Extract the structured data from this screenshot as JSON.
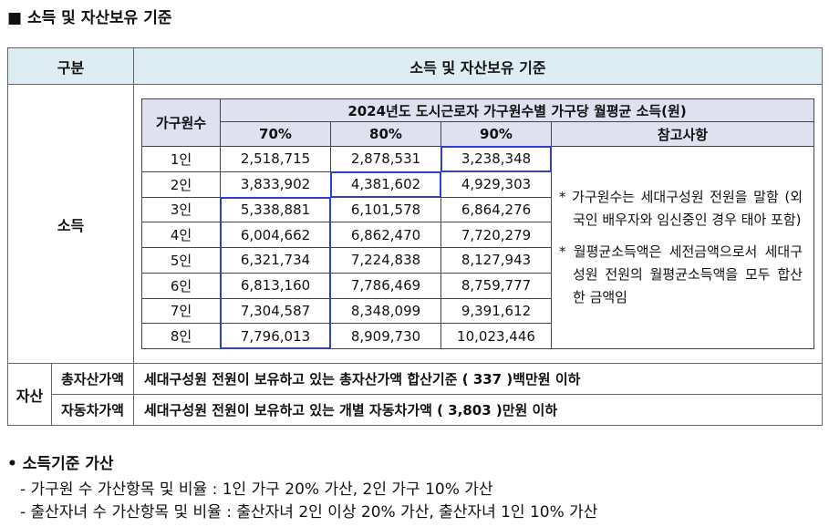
{
  "title": "■ 소득 및 자산보유 기준",
  "table": {
    "header": [
      "구분",
      "소득 및 자산보유 기준"
    ],
    "income": {
      "label": "소득",
      "inner": {
        "row_header": "가구원수",
        "caption": "2024년도 도시근로자 가구원수별 가구당 월평균 소득(원)",
        "columns": [
          "70%",
          "80%",
          "90%"
        ],
        "notes_header": "참고사항",
        "rows": [
          [
            "1인",
            "2,518,715",
            "2,878,531",
            "3,238,348"
          ],
          [
            "2인",
            "3,833,902",
            "4,381,602",
            "4,929,303"
          ],
          [
            "3인",
            "5,338,881",
            "6,101,578",
            "6,864,276"
          ],
          [
            "4인",
            "6,004,662",
            "6,862,470",
            "7,720,279"
          ],
          [
            "5인",
            "6,321,734",
            "7,224,838",
            "8,127,943"
          ],
          [
            "6인",
            "6,813,160",
            "7,786,469",
            "8,759,777"
          ],
          [
            "7인",
            "7,304,587",
            "8,348,099",
            "9,391,612"
          ],
          [
            "8인",
            "7,796,013",
            "8,909,730",
            "10,023,446"
          ]
        ],
        "notes": [
          "* 가구원수는 세대구성원 전원을 말함 (외국인 배우자와 임신중인 경우 태아 포함)",
          "* 월평균소득액은 세전금액으로서 세대구성원 전원의 월평균소득액을 모두 합산한 금액임"
        ]
      }
    },
    "assets": {
      "label": "자산",
      "rows": [
        [
          "총자산가액",
          "세대구성원 전원이 보유하고 있는 총자산가액 합산기준 ( 337 )백만원 이하"
        ],
        [
          "자동차가액",
          "세대구성원 전원이 보유하고 있는 개별 자동차가액 ( 3,803 )만원 이하"
        ]
      ]
    }
  },
  "addition": {
    "title": "• 소득기준 가산",
    "items": [
      "- 가구원 수 가산항목 및 비율 : 1인 가구 20% 가산, 2인 가구 10% 가산",
      "- 출산자녀 수 가산항목 및 비율 : 출산자녀 2인 이상 20% 가산, 출산자녀 1인 10% 가산"
    ]
  }
}
